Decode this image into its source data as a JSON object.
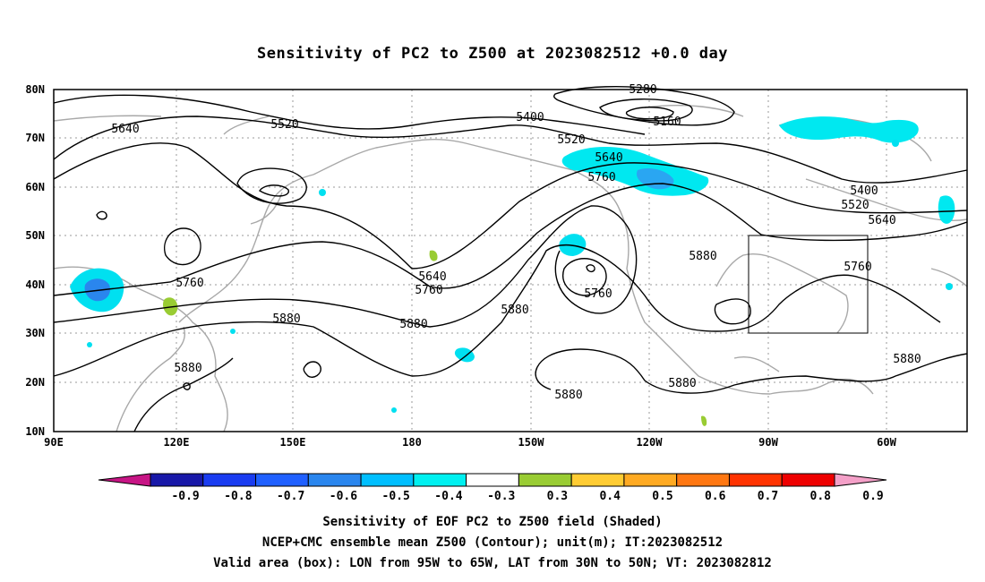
{
  "title": "Sensitivity of PC2 to Z500 at 2023082512 +0.0 day",
  "lat_labels": [
    "80N",
    "70N",
    "60N",
    "50N",
    "40N",
    "30N",
    "20N",
    "10N"
  ],
  "lon_labels": [
    "90E",
    "120E",
    "150E",
    "180",
    "150W",
    "120W",
    "90W",
    "60W"
  ],
  "contour_labels": [
    "5280",
    "5160",
    "5400",
    "5520",
    "5640",
    "5640",
    "5520",
    "5400",
    "5520",
    "5640",
    "5760",
    "5640",
    "5760",
    "5760",
    "5880",
    "5880",
    "5760",
    "5880",
    "5880",
    "5880",
    "5880",
    "5880",
    "5760",
    "5880"
  ],
  "colorbar": {
    "labels": [
      "-0.9",
      "-0.8",
      "-0.7",
      "-0.6",
      "-0.5",
      "-0.4",
      "-0.3",
      "0.3",
      "0.4",
      "0.5",
      "0.6",
      "0.7",
      "0.8",
      "0.9"
    ],
    "colors": [
      "#c71585",
      "#1818a8",
      "#1a3cf0",
      "#2060ff",
      "#2a86ee",
      "#00bfff",
      "#00f0f0",
      "#ffffff",
      "#99cc33",
      "#ffcc33",
      "#ffaa22",
      "#ff7711",
      "#ff3300",
      "#ee0000",
      "#f4a0c8"
    ]
  },
  "captions": [
    "Sensitivity of EOF PC2 to Z500 field (Shaded)",
    "NCEP+CMC ensemble mean Z500 (Contour); unit(m); IT:2023082512",
    "Valid area (box): LON from 95W to 65W, LAT from 30N to 50N; VT: 2023082812"
  ]
}
